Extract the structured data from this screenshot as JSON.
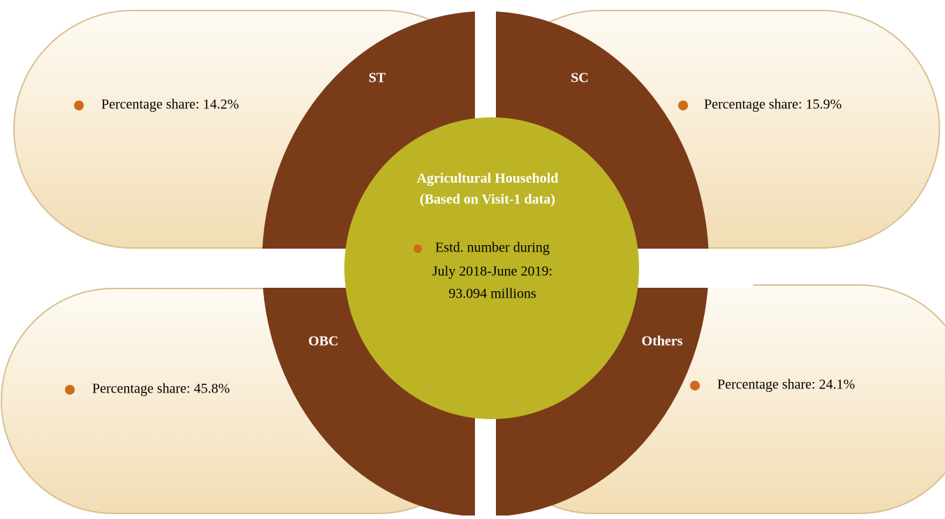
{
  "center": {
    "title": [
      "Agricultural Household",
      "(Based on Visit-1 data)"
    ],
    "bullet": [
      "Estd. number during",
      "July 2018-June 2019:",
      "93.094 millions"
    ]
  },
  "quadrants": [
    {
      "label": "ST",
      "text": "Percentage share: 14.2%"
    },
    {
      "label": "SC",
      "text": "Percentage share: 15.9%"
    },
    {
      "label": "OBC",
      "text": "Percentage share: 45.8%"
    },
    {
      "label": "Others",
      "text": "Percentage share: 24.1%"
    }
  ]
}
